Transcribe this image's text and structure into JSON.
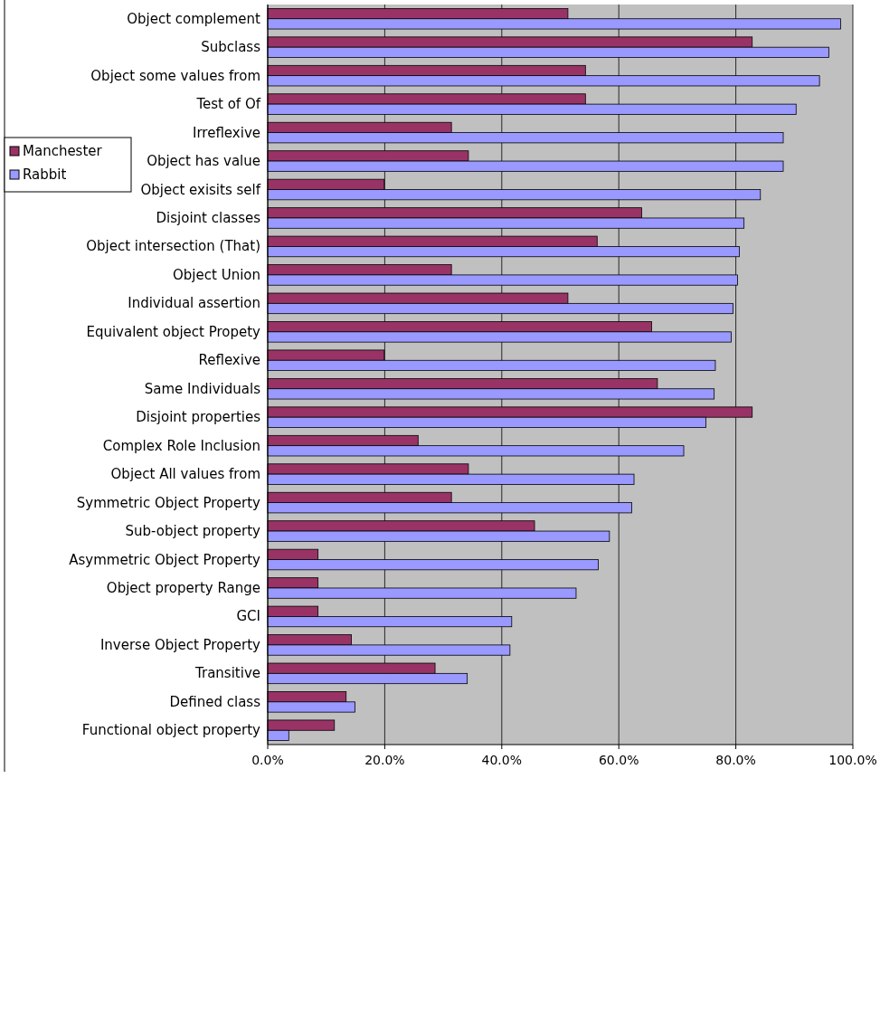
{
  "chart_data": {
    "type": "bar",
    "orientation": "horizontal",
    "categories": [
      "Object complement",
      "Subclass",
      "Object some values from",
      "Test of Of",
      "Irreflexive",
      "Object has value",
      "Object exisits self",
      "Disjoint classes",
      "Object intersection (That)",
      "Object Union",
      "Individual assertion",
      "Equivalent object Propety",
      "Reflexive",
      "Same Individuals",
      "Disjoint properties",
      "Complex Role Inclusion",
      "Object All values from",
      "Symmetric Object Property",
      "Sub-object property",
      "Asymmetric Object Property",
      "Object property Range",
      "GCI",
      "Inverse Object Property",
      "Transitive",
      "Defined class",
      "Functional object property"
    ],
    "series": [
      {
        "name": "Manchester",
        "color": "#993366",
        "values": [
          51.3,
          82.8,
          54.3,
          54.3,
          31.4,
          34.3,
          19.9,
          63.9,
          56.3,
          31.4,
          51.3,
          65.6,
          19.9,
          66.6,
          82.8,
          25.7,
          34.3,
          31.4,
          45.6,
          8.6,
          8.6,
          8.6,
          14.3,
          28.6,
          13.4,
          11.4
        ]
      },
      {
        "name": "Rabbit",
        "color": "#9999ff",
        "values": [
          97.9,
          95.9,
          94.3,
          90.3,
          88.1,
          88.1,
          84.2,
          81.4,
          80.6,
          80.3,
          79.5,
          79.2,
          76.5,
          76.3,
          74.9,
          71.1,
          62.6,
          62.2,
          58.4,
          56.5,
          52.7,
          41.7,
          41.4,
          34.1,
          14.9,
          3.6
        ]
      }
    ],
    "xlim": [
      0,
      100
    ],
    "xticks": [
      {
        "value": 0,
        "label": "0.0%"
      },
      {
        "value": 20,
        "label": "20.0%"
      },
      {
        "value": 40,
        "label": "40.0%"
      },
      {
        "value": 60,
        "label": "60.0%"
      },
      {
        "value": 80,
        "label": "80.0%"
      },
      {
        "value": 100,
        "label": "100.0%"
      }
    ],
    "grid": "x",
    "legend": "left"
  }
}
